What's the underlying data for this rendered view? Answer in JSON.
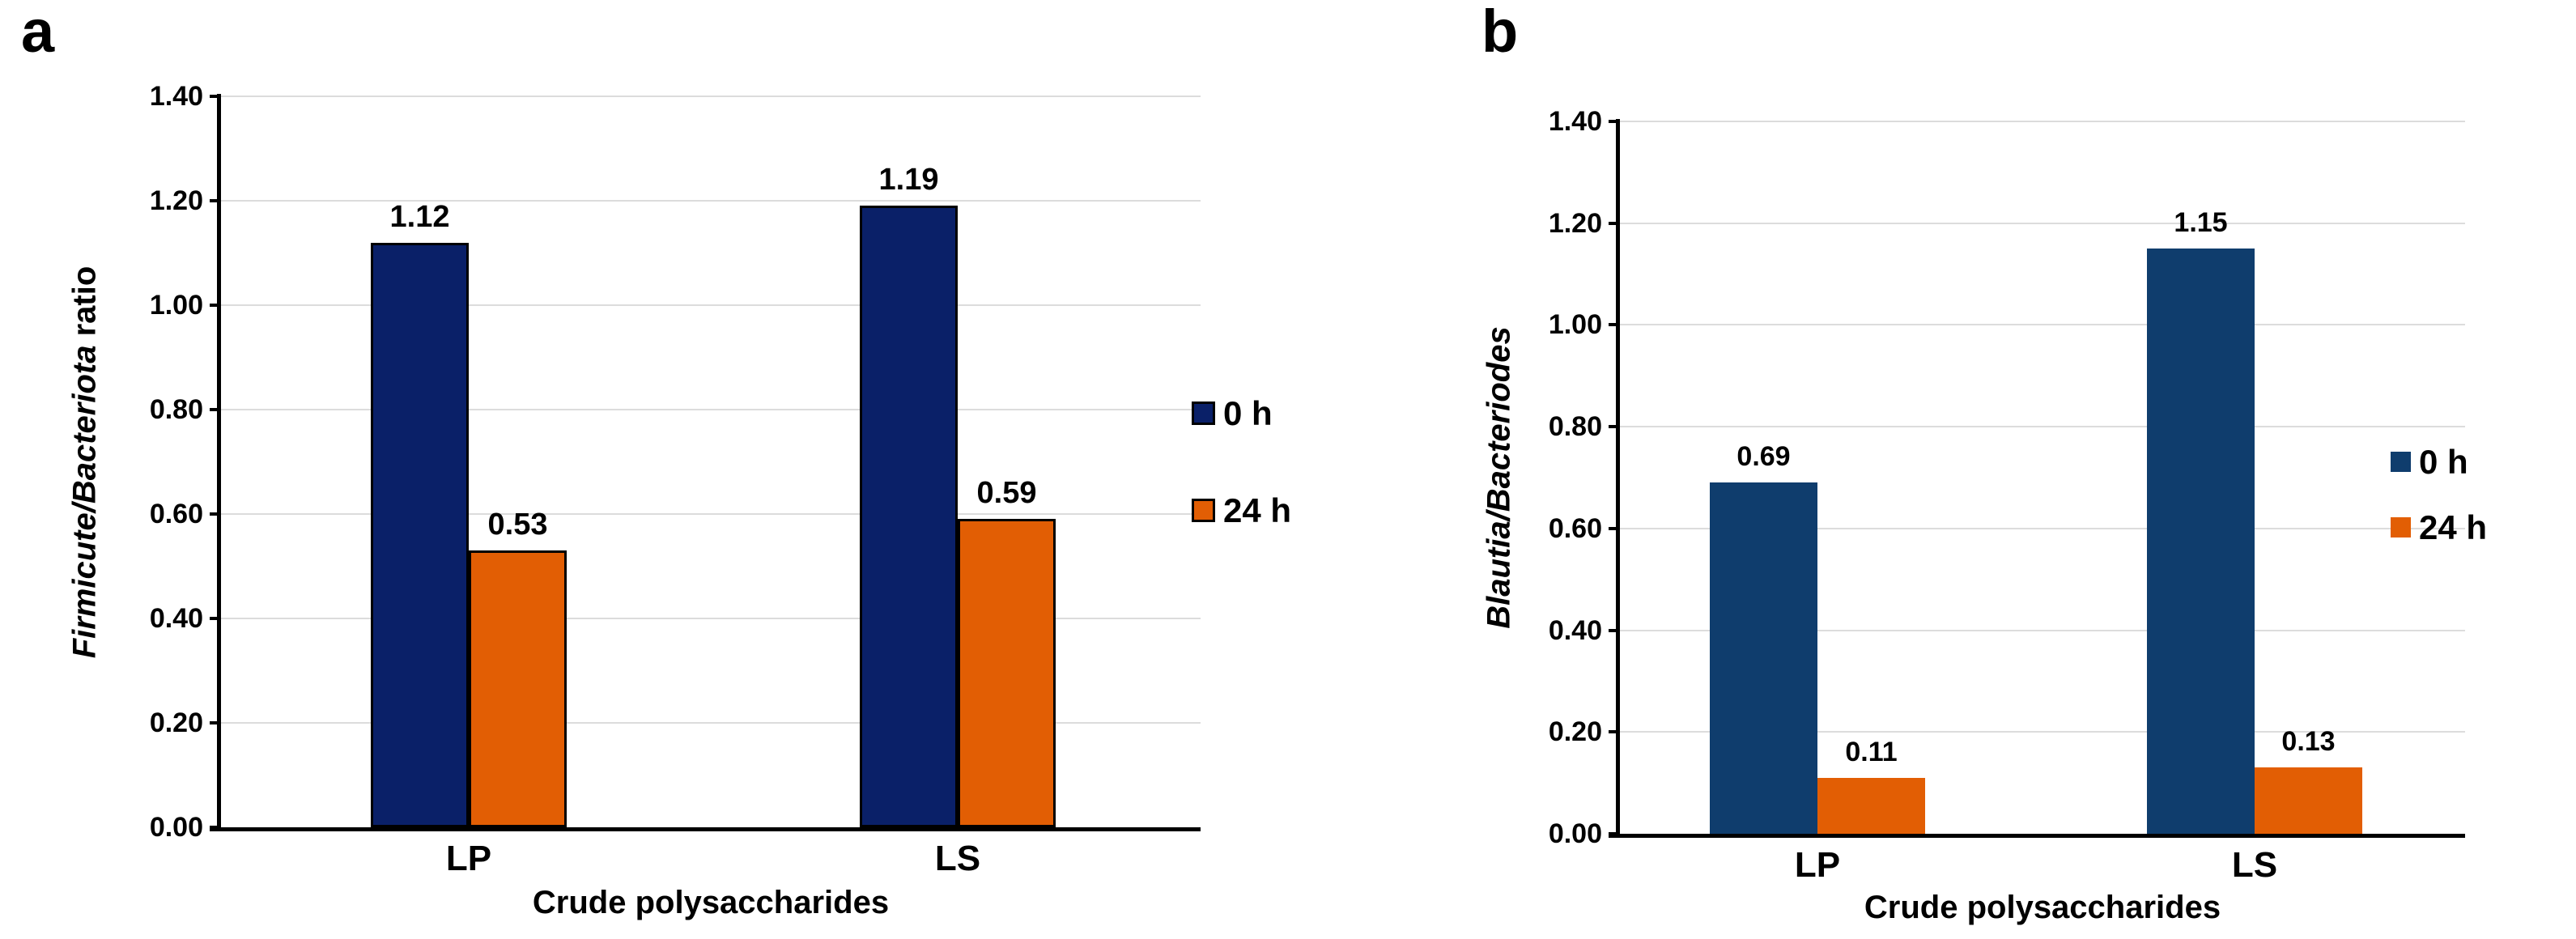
{
  "figure_caption_letters": [
    "a",
    "b"
  ],
  "chart_data": [
    {
      "type": "bar",
      "panel_label": "a",
      "title": "",
      "categories": [
        "LP",
        "LS"
      ],
      "series": [
        {
          "name": "0 h",
          "color": "#0a2068",
          "values": [
            1.12,
            1.19
          ],
          "labels": [
            "1.12",
            "1.19"
          ]
        },
        {
          "name": "24 h",
          "color": "#e25e04",
          "values": [
            0.53,
            0.59
          ],
          "labels": [
            "0.53",
            "0.59"
          ]
        }
      ],
      "ylabel_italic": "Firmicute/Bacteriota",
      "ylabel_regular": " ratio",
      "xlabel": "Crude polysaccharides",
      "ylim": [
        0,
        1.4
      ],
      "ytick_step": 0.2,
      "yticks": [
        "0.00",
        "0.20",
        "0.40",
        "0.60",
        "0.80",
        "1.00",
        "1.20",
        "1.40"
      ],
      "grid": true,
      "legend_position": "right",
      "bar_outline": "#000000",
      "gridline_color": "#dcdcdc"
    },
    {
      "type": "bar",
      "panel_label": "b",
      "title": "",
      "categories": [
        "LP",
        "LS"
      ],
      "series": [
        {
          "name": "0 h",
          "color": "#0f3d6d",
          "values": [
            0.69,
            1.15
          ],
          "labels": [
            "0.69",
            "1.15"
          ]
        },
        {
          "name": "24 h",
          "color": "#e25e04",
          "values": [
            0.11,
            0.13
          ],
          "labels": [
            "0.11",
            "0.13"
          ]
        }
      ],
      "ylabel_italic": "Blautia/Bacteriodes",
      "ylabel_regular": "",
      "xlabel": "Crude polysaccharides",
      "ylim": [
        0,
        1.4
      ],
      "ytick_step": 0.2,
      "yticks": [
        "0.00",
        "0.20",
        "0.40",
        "0.60",
        "0.80",
        "1.00",
        "1.20",
        "1.40"
      ],
      "grid": true,
      "legend_position": "right",
      "bar_outline": null,
      "gridline_color": "#dcdcdc"
    }
  ]
}
